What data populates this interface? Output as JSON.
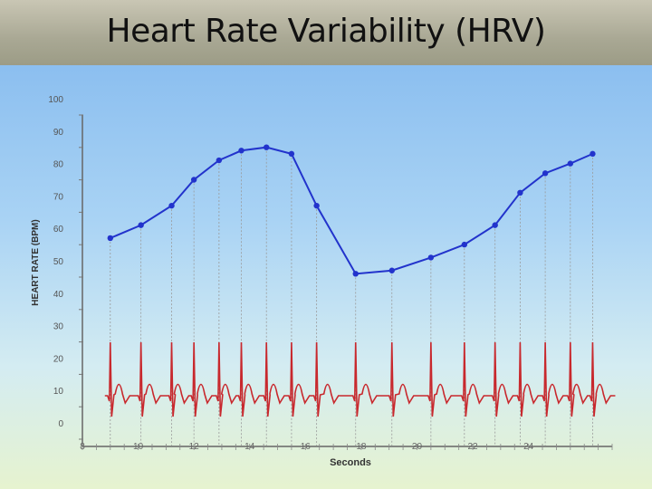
{
  "slide": {
    "title": "Heart Rate Variability (HRV)"
  },
  "chart_data": {
    "type": "line",
    "title": "",
    "xlabel": "Seconds",
    "ylabel": "HEART RATE (BPM)",
    "xlim": [
      8,
      27
    ],
    "ylim": [
      0,
      100
    ],
    "y_ticks": [
      0,
      10,
      20,
      30,
      40,
      50,
      60,
      70,
      80,
      90,
      100
    ],
    "x_ticks": [
      8,
      10,
      12,
      14,
      16,
      18,
      20,
      22,
      24
    ],
    "grid": false,
    "series": [
      {
        "x": [
          9.0,
          10.1,
          11.2,
          12.0,
          12.9,
          13.7,
          14.6,
          15.5,
          16.4,
          17.8,
          19.1,
          20.5,
          21.7,
          22.8,
          23.7,
          24.6,
          25.5,
          26.3
        ],
        "values": [
          57,
          61,
          67,
          75,
          81,
          84,
          85,
          83,
          67,
          46,
          47,
          51,
          55,
          61,
          71,
          77,
          80,
          83
        ],
        "color": "#2233cc"
      }
    ],
    "ecg_color": "#c8282d"
  }
}
